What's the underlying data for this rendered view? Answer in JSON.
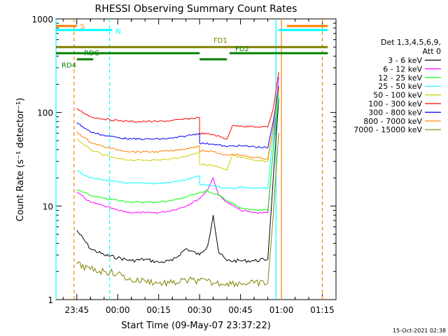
{
  "chart_data": {
    "type": "line",
    "title": "RHESSI Observing Summary Count Rates",
    "xlabel": "Start Time (09-May-07 23:37:22)",
    "ylabel": "Count Rate (s⁻¹ detector⁻¹)",
    "y_scale": "log",
    "ylim": [
      1,
      1000
    ],
    "xlim": [
      "23:37:22",
      "01:20"
    ],
    "x_ticks": [
      "23:45",
      "00:00",
      "00:15",
      "00:30",
      "00:45",
      "01:00",
      "01:15"
    ],
    "y_ticks": [
      "1",
      "10",
      "100",
      "1000"
    ],
    "grid": false,
    "legend_position": "right",
    "legend_title_lines": [
      "Det 1,3,4,5,6,9,",
      "Att 0"
    ],
    "footer": "15-Oct-2021 02:38",
    "series": [
      {
        "name": "3 - 6 keV",
        "color": "#000000",
        "x": [
          "23:45",
          "23:50",
          "23:55",
          "00:00",
          "00:05",
          "00:10",
          "00:15",
          "00:20",
          "00:25",
          "00:30",
          "00:33",
          "00:35",
          "00:37",
          "00:40",
          "00:45",
          "00:50",
          "00:55",
          "00:57",
          "00:59"
        ],
        "y": [
          5.5,
          3.5,
          3,
          2.8,
          2.6,
          2.7,
          2.5,
          2.6,
          3.5,
          3,
          3.8,
          8,
          3.2,
          2.6,
          2.6,
          2.6,
          2.7,
          20,
          140
        ]
      },
      {
        "name": "6 - 12 keV",
        "color": "#ff00ff",
        "x": [
          "23:45",
          "23:50",
          "23:55",
          "00:00",
          "00:05",
          "00:10",
          "00:15",
          "00:20",
          "00:25",
          "00:30",
          "00:33",
          "00:35",
          "00:37",
          "00:40",
          "00:45",
          "00:50",
          "00:55",
          "00:57",
          "00:59"
        ],
        "y": [
          14,
          11,
          10,
          9,
          8.5,
          8.5,
          8.5,
          9,
          10,
          12,
          15,
          20,
          13,
          11,
          9,
          8.5,
          8.5,
          40,
          240
        ]
      },
      {
        "name": "12 - 25 keV",
        "color": "#00ff00",
        "x": [
          "23:45",
          "23:50",
          "23:55",
          "00:00",
          "00:05",
          "00:10",
          "00:15",
          "00:20",
          "00:25",
          "00:30",
          "00:33",
          "00:35",
          "00:37",
          "00:40",
          "00:45",
          "00:50",
          "00:55",
          "00:57",
          "00:59"
        ],
        "y": [
          15,
          13,
          12,
          11.5,
          11,
          11,
          11,
          11.5,
          12.5,
          14,
          14.5,
          13.5,
          13,
          11.5,
          9.5,
          9,
          9,
          40,
          150
        ]
      },
      {
        "name": "25 - 50 keV",
        "color": "#00ffff",
        "x": [
          "23:45",
          "23:50",
          "23:55",
          "00:00",
          "00:05",
          "00:10",
          "00:15",
          "00:20",
          "00:25",
          "00:30",
          "00:30",
          "00:35",
          "00:40",
          "00:42",
          "00:45",
          "00:50",
          "00:55",
          "00:57",
          "00:59"
        ],
        "y": [
          24,
          20,
          19,
          18,
          17.5,
          17.5,
          17.5,
          18,
          19,
          21,
          17,
          16.5,
          15.5,
          15.5,
          16,
          15.5,
          15.5,
          60,
          160
        ]
      },
      {
        "name": "50 - 100 keV",
        "color": "#d0d000",
        "x": [
          "23:45",
          "23:50",
          "23:55",
          "00:00",
          "00:05",
          "00:10",
          "00:15",
          "00:20",
          "00:25",
          "00:30",
          "00:30",
          "00:35",
          "00:40",
          "00:42",
          "00:45",
          "00:50",
          "00:55",
          "00:57",
          "00:59"
        ],
        "y": [
          52,
          40,
          35,
          32,
          31,
          31,
          31,
          32,
          34,
          38,
          28,
          27,
          24,
          35,
          33,
          31,
          30,
          70,
          170
        ]
      },
      {
        "name": "100 - 300 keV",
        "color": "#ff0000",
        "x": [
          "23:45",
          "23:50",
          "23:55",
          "00:00",
          "00:05",
          "00:10",
          "00:15",
          "00:20",
          "00:25",
          "00:30",
          "00:30",
          "00:35",
          "00:40",
          "00:42",
          "00:45",
          "00:50",
          "00:55",
          "00:57",
          "00:59"
        ],
        "y": [
          110,
          90,
          85,
          82,
          80,
          80,
          80,
          82,
          85,
          88,
          60,
          58,
          52,
          72,
          72,
          70,
          70,
          110,
          270
        ]
      },
      {
        "name": "300 - 800 keV",
        "color": "#0000ff",
        "x": [
          "23:45",
          "23:50",
          "23:55",
          "00:00",
          "00:05",
          "00:10",
          "00:15",
          "00:20",
          "00:25",
          "00:30",
          "00:30",
          "00:35",
          "00:40",
          "00:42",
          "00:45",
          "00:50",
          "00:55",
          "00:57",
          "00:59"
        ],
        "y": [
          78,
          62,
          57,
          54,
          52,
          52,
          52,
          53,
          56,
          60,
          47,
          46,
          43,
          44,
          44,
          43,
          42,
          80,
          190
        ]
      },
      {
        "name": "800 - 7000 keV",
        "color": "#ff8000",
        "x": [
          "23:45",
          "23:50",
          "23:55",
          "00:00",
          "00:05",
          "00:10",
          "00:15",
          "00:20",
          "00:25",
          "00:30",
          "00:30",
          "00:35",
          "00:40",
          "00:42",
          "00:45",
          "00:50",
          "00:55",
          "00:57",
          "00:59"
        ],
        "y": [
          62,
          48,
          43,
          40,
          38,
          38,
          38,
          39,
          41,
          44,
          39,
          38,
          35,
          36,
          35,
          33,
          32,
          70,
          180
        ]
      },
      {
        "name": "7000 - 15000 keV",
        "color": "#808000",
        "x": [
          "23:45",
          "23:50",
          "23:55",
          "00:00",
          "00:05",
          "00:10",
          "00:15",
          "00:20",
          "00:25",
          "00:30",
          "00:35",
          "00:40",
          "00:45",
          "00:50",
          "00:55",
          "00:57",
          "00:59"
        ],
        "y": [
          2.4,
          2.1,
          2,
          1.9,
          1.6,
          1.6,
          1.5,
          1.5,
          1.6,
          1.6,
          1.5,
          1.5,
          1.5,
          1.5,
          1.5,
          8,
          60
        ]
      }
    ],
    "flags": [
      {
        "label": "S",
        "color": "#ff8000",
        "y": 840,
        "segments": [
          [
            "23:37:22",
            "23:45"
          ],
          [
            "01:02",
            "01:17"
          ]
        ]
      },
      {
        "label": "N",
        "color": "#00ffff",
        "y": 760,
        "segments": [
          [
            "23:37:22",
            "23:58"
          ],
          [
            "00:59",
            "01:17"
          ]
        ]
      },
      {
        "label": "FD1",
        "color": "#808000",
        "y": 500,
        "segments": [
          [
            "23:37:22",
            "01:17"
          ]
        ]
      },
      {
        "label": "FD2",
        "color": "#008000",
        "y": 430,
        "segments": [
          [
            "23:37:22",
            "00:30"
          ],
          [
            "00:41",
            "01:17"
          ]
        ]
      },
      {
        "label": "RDC",
        "color": "#008000",
        "y": 430,
        "segments": [
          [
            "23:37:22",
            "23:52"
          ]
        ]
      },
      {
        "label": "RD4",
        "color": "#008000",
        "y": 370,
        "segments": [
          [
            "23:45",
            "23:51"
          ],
          [
            "00:30",
            "00:40"
          ]
        ]
      }
    ],
    "vlines": [
      {
        "x": "23:37:22",
        "color": "#00ffff",
        "style": "solid"
      },
      {
        "x": "23:44",
        "color": "#ff8000",
        "style": "dashed"
      },
      {
        "x": "23:57",
        "color": "#00ffff",
        "style": "dashed"
      },
      {
        "x": "00:58",
        "color": "#00ffff",
        "style": "solid"
      },
      {
        "x": "01:00",
        "color": "#ff8000",
        "style": "solid"
      },
      {
        "x": "01:15",
        "color": "#00ffff",
        "style": "dashed"
      },
      {
        "x": "01:15",
        "color": "#ff8000",
        "style": "dashed"
      }
    ]
  }
}
